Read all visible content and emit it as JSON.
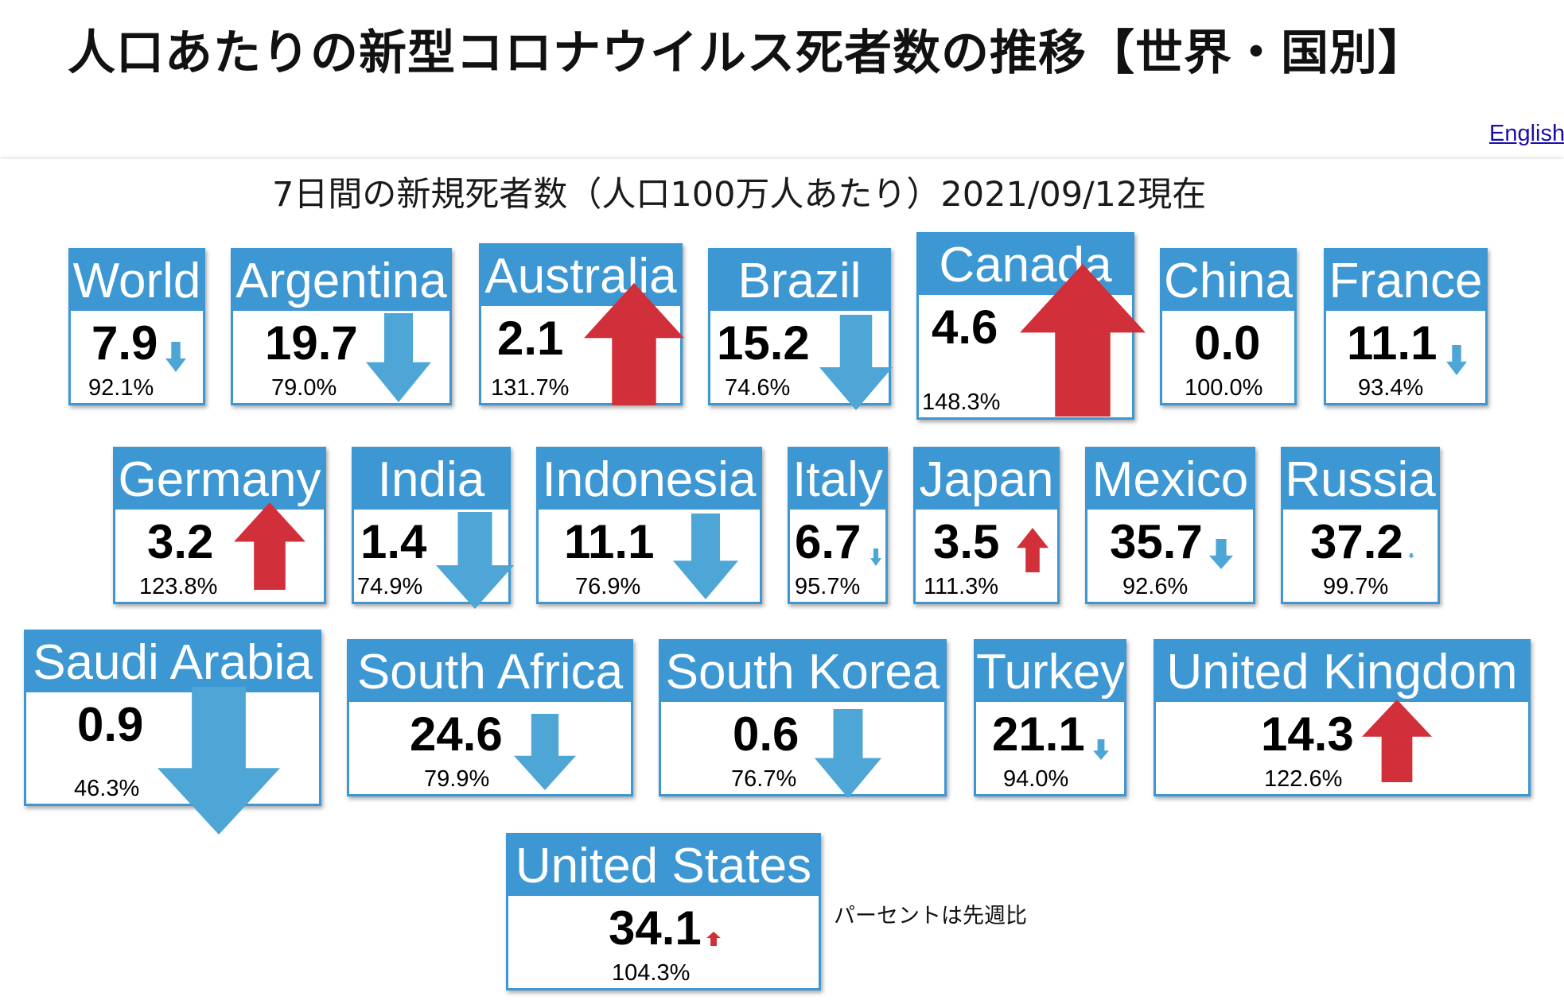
{
  "page": {
    "title": "人口あたりの新型コロナウイルス死者数の推移【世界・国別】",
    "english_link": "English",
    "subtitle": "7日間の新規死者数（人口100万人あたり）2021/09/12現在",
    "note": "パーセントは先週比"
  },
  "colors": {
    "header_blue": "#3d97d3",
    "arrow_down": "#4da6d6",
    "arrow_up": "#d1303a"
  },
  "countries": [
    {
      "name": "World",
      "value": "7.9",
      "pct": "92.1%",
      "trend": "down"
    },
    {
      "name": "Argentina",
      "value": "19.7",
      "pct": "79.0%",
      "trend": "down"
    },
    {
      "name": "Australia",
      "value": "2.1",
      "pct": "131.7%",
      "trend": "up"
    },
    {
      "name": "Brazil",
      "value": "15.2",
      "pct": "74.6%",
      "trend": "down"
    },
    {
      "name": "Canada",
      "value": "4.6",
      "pct": "148.3%",
      "trend": "up"
    },
    {
      "name": "China",
      "value": "0.0",
      "pct": "100.0%",
      "trend": "none"
    },
    {
      "name": "France",
      "value": "11.1",
      "pct": "93.4%",
      "trend": "down"
    },
    {
      "name": "Germany",
      "value": "3.2",
      "pct": "123.8%",
      "trend": "up"
    },
    {
      "name": "India",
      "value": "1.4",
      "pct": "74.9%",
      "trend": "down"
    },
    {
      "name": "Indonesia",
      "value": "11.1",
      "pct": "76.9%",
      "trend": "down"
    },
    {
      "name": "Italy",
      "value": "6.7",
      "pct": "95.7%",
      "trend": "down"
    },
    {
      "name": "Japan",
      "value": "3.5",
      "pct": "111.3%",
      "trend": "up"
    },
    {
      "name": "Mexico",
      "value": "35.7",
      "pct": "92.6%",
      "trend": "down"
    },
    {
      "name": "Russia",
      "value": "37.2",
      "pct": "99.7%",
      "trend": "down"
    },
    {
      "name": "Saudi Arabia",
      "value": "0.9",
      "pct": "46.3%",
      "trend": "down"
    },
    {
      "name": "South Africa",
      "value": "24.6",
      "pct": "79.9%",
      "trend": "down"
    },
    {
      "name": "South Korea",
      "value": "0.6",
      "pct": "76.7%",
      "trend": "down"
    },
    {
      "name": "Turkey",
      "value": "21.1",
      "pct": "94.0%",
      "trend": "down"
    },
    {
      "name": "United Kingdom",
      "value": "14.3",
      "pct": "122.6%",
      "trend": "up"
    },
    {
      "name": "United States",
      "value": "34.1",
      "pct": "104.3%",
      "trend": "up"
    }
  ]
}
